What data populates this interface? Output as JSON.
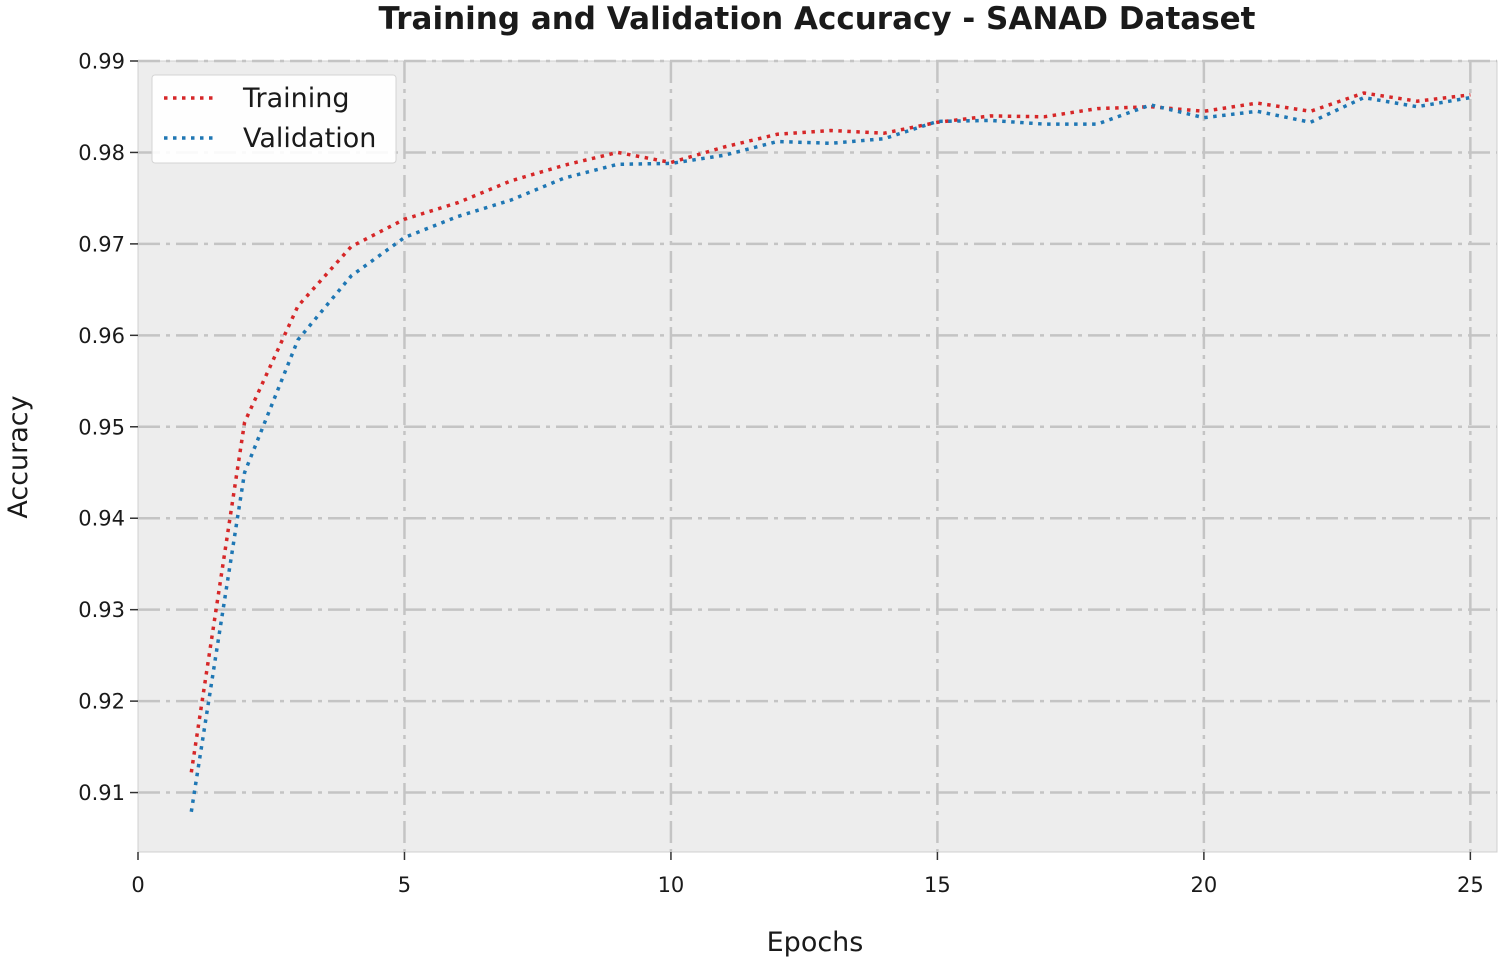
{
  "chart_data": {
    "type": "line",
    "title": "Training and Validation Accuracy - SANAD Dataset",
    "xlabel": "Epochs",
    "ylabel": "Accuracy",
    "xlim": [
      0,
      25.5
    ],
    "ylim": [
      0.9035,
      0.99
    ],
    "xticks": [
      0,
      5,
      10,
      15,
      20,
      25
    ],
    "xtick_labels": [
      "0",
      "5",
      "10",
      "15",
      "20",
      "25"
    ],
    "yticks": [
      0.91,
      0.92,
      0.93,
      0.94,
      0.95,
      0.96,
      0.97,
      0.98,
      0.99
    ],
    "ytick_labels": [
      "0.91",
      "0.92",
      "0.93",
      "0.94",
      "0.95",
      "0.96",
      "0.97",
      "0.98",
      "0.99"
    ],
    "grid": true,
    "legend_position": "top-left",
    "background_color": "#ededed",
    "grid_color": "#c4c4c4",
    "series": [
      {
        "name": "Training",
        "color": "#d62728",
        "x": [
          1,
          2,
          3,
          4,
          5,
          6,
          7,
          8,
          9,
          10,
          11,
          12,
          13,
          14,
          15,
          16,
          17,
          18,
          19,
          20,
          21,
          22,
          23,
          24,
          25
        ],
        "y": [
          0.9122,
          0.9505,
          0.9632,
          0.9697,
          0.9727,
          0.9745,
          0.9769,
          0.9786,
          0.98,
          0.9789,
          0.9806,
          0.982,
          0.9824,
          0.9821,
          0.9833,
          0.984,
          0.9839,
          0.9848,
          0.985,
          0.9845,
          0.9854,
          0.9845,
          0.9865,
          0.9856,
          0.9863
        ]
      },
      {
        "name": "Validation",
        "color": "#1f77b4",
        "x": [
          1,
          2,
          3,
          4,
          5,
          6,
          7,
          8,
          9,
          10,
          11,
          12,
          13,
          14,
          15,
          16,
          17,
          18,
          19,
          20,
          21,
          22,
          23,
          24,
          25
        ],
        "y": [
          0.9079,
          0.945,
          0.9595,
          0.9665,
          0.9707,
          0.973,
          0.9748,
          0.9772,
          0.9787,
          0.9788,
          0.9797,
          0.9812,
          0.981,
          0.9815,
          0.9834,
          0.9835,
          0.9831,
          0.9831,
          0.9852,
          0.9838,
          0.9845,
          0.9833,
          0.986,
          0.985,
          0.986
        ]
      }
    ]
  }
}
